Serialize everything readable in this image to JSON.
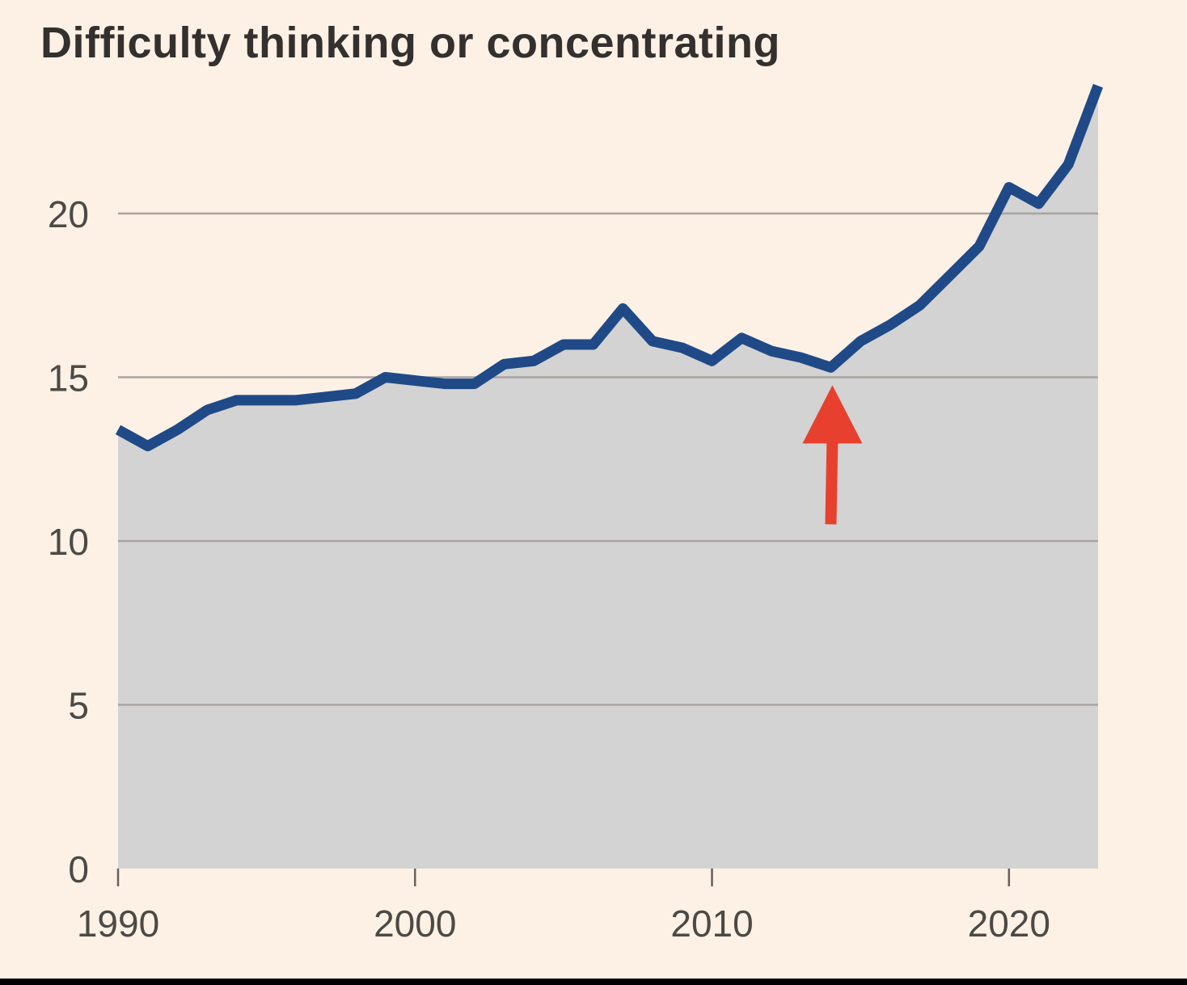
{
  "chart_data": {
    "type": "area",
    "title": "Difficulty thinking or concentrating",
    "xlabel": "",
    "ylabel": "",
    "xlim": [
      1990,
      2023
    ],
    "ylim": [
      0,
      24
    ],
    "grid": true,
    "yticks": [
      0,
      5,
      10,
      15,
      20
    ],
    "ytick_labels": [
      "0",
      "5",
      "10",
      "15",
      "20"
    ],
    "xticks": [
      1990,
      2000,
      2010,
      2020
    ],
    "xtick_labels": [
      "1990",
      "2000",
      "2010",
      "2020"
    ],
    "series": [
      {
        "name": "Difficulty thinking or concentrating",
        "line_color": "#1f4a87",
        "fill_color": "#d3d3d3",
        "x": [
          1990,
          1991,
          1992,
          1993,
          1994,
          1995,
          1996,
          1997,
          1998,
          1999,
          2000,
          2001,
          2002,
          2003,
          2004,
          2005,
          2006,
          2007,
          2008,
          2009,
          2010,
          2011,
          2012,
          2013,
          2014,
          2015,
          2016,
          2017,
          2018,
          2019,
          2020,
          2021,
          2022,
          2023
        ],
        "values": [
          13.4,
          12.9,
          13.4,
          14.0,
          14.3,
          14.3,
          14.3,
          14.4,
          14.5,
          15.0,
          14.9,
          14.8,
          14.8,
          15.4,
          15.5,
          16.0,
          16.0,
          17.1,
          16.1,
          15.9,
          15.5,
          16.2,
          15.8,
          15.6,
          15.3,
          16.1,
          16.6,
          17.2,
          18.1,
          19.0,
          20.8,
          20.3,
          21.5,
          23.9
        ]
      }
    ],
    "annotations": [
      {
        "type": "arrow",
        "color": "#e8402e",
        "target_x": 2014,
        "target_y": 15.3,
        "direction": "up"
      }
    ]
  }
}
